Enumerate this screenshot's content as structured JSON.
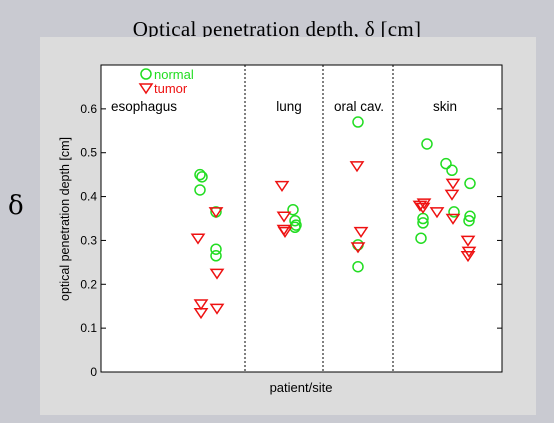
{
  "slide": {
    "title": "Optical penetration depth, δ [cm]",
    "side_symbol": "δ"
  },
  "chart_data": {
    "type": "scatter",
    "title": "",
    "xlabel": "patient/site",
    "ylabel": "optical penetration depth [cm]",
    "ylim": [
      0,
      0.7
    ],
    "yticks": [
      0,
      0.1,
      0.2,
      0.3,
      0.4,
      0.5,
      0.6
    ],
    "ytick_labels": [
      "0",
      "0.1",
      "0.2",
      "0.3",
      "0.4",
      "0.5",
      "0.6"
    ],
    "grid": false,
    "legend": {
      "placement": "top-left",
      "entries": [
        "normal",
        "tumor"
      ]
    },
    "colors": {
      "normal": "#22dd22",
      "tumor": "#ee1111"
    },
    "groups": [
      "esophagus",
      "lung",
      "oral cav.",
      "skin"
    ],
    "series": [
      {
        "name": "normal",
        "marker": "circle",
        "points": [
          {
            "group": "esophagus",
            "y": 0.45
          },
          {
            "group": "esophagus",
            "y": 0.445
          },
          {
            "group": "esophagus",
            "y": 0.415
          },
          {
            "group": "esophagus",
            "y": 0.365
          },
          {
            "group": "esophagus",
            "y": 0.28
          },
          {
            "group": "esophagus",
            "y": 0.265
          },
          {
            "group": "lung",
            "y": 0.37
          },
          {
            "group": "lung",
            "y": 0.345
          },
          {
            "group": "lung",
            "y": 0.335
          },
          {
            "group": "lung",
            "y": 0.33
          },
          {
            "group": "oral cav.",
            "y": 0.57
          },
          {
            "group": "oral cav.",
            "y": 0.29
          },
          {
            "group": "oral cav.",
            "y": 0.24
          },
          {
            "group": "skin",
            "y": 0.52
          },
          {
            "group": "skin",
            "y": 0.475
          },
          {
            "group": "skin",
            "y": 0.46
          },
          {
            "group": "skin",
            "y": 0.43
          },
          {
            "group": "skin",
            "y": 0.365
          },
          {
            "group": "skin",
            "y": 0.355
          },
          {
            "group": "skin",
            "y": 0.35
          },
          {
            "group": "skin",
            "y": 0.345
          },
          {
            "group": "skin",
            "y": 0.34
          },
          {
            "group": "skin",
            "y": 0.305
          }
        ]
      },
      {
        "name": "tumor",
        "marker": "triangle-down",
        "points": [
          {
            "group": "esophagus",
            "y": 0.365
          },
          {
            "group": "esophagus",
            "y": 0.305
          },
          {
            "group": "esophagus",
            "y": 0.225
          },
          {
            "group": "esophagus",
            "y": 0.155
          },
          {
            "group": "esophagus",
            "y": 0.145
          },
          {
            "group": "esophagus",
            "y": 0.135
          },
          {
            "group": "lung",
            "y": 0.425
          },
          {
            "group": "lung",
            "y": 0.355
          },
          {
            "group": "lung",
            "y": 0.325
          },
          {
            "group": "lung",
            "y": 0.32
          },
          {
            "group": "oral cav.",
            "y": 0.47
          },
          {
            "group": "oral cav.",
            "y": 0.32
          },
          {
            "group": "oral cav.",
            "y": 0.285
          },
          {
            "group": "skin",
            "y": 0.43
          },
          {
            "group": "skin",
            "y": 0.405
          },
          {
            "group": "skin",
            "y": 0.385
          },
          {
            "group": "skin",
            "y": 0.38
          },
          {
            "group": "skin",
            "y": 0.375
          },
          {
            "group": "skin",
            "y": 0.365
          },
          {
            "group": "skin",
            "y": 0.35
          },
          {
            "group": "skin",
            "y": 0.3
          },
          {
            "group": "skin",
            "y": 0.275
          },
          {
            "group": "skin",
            "y": 0.265
          }
        ]
      }
    ]
  }
}
